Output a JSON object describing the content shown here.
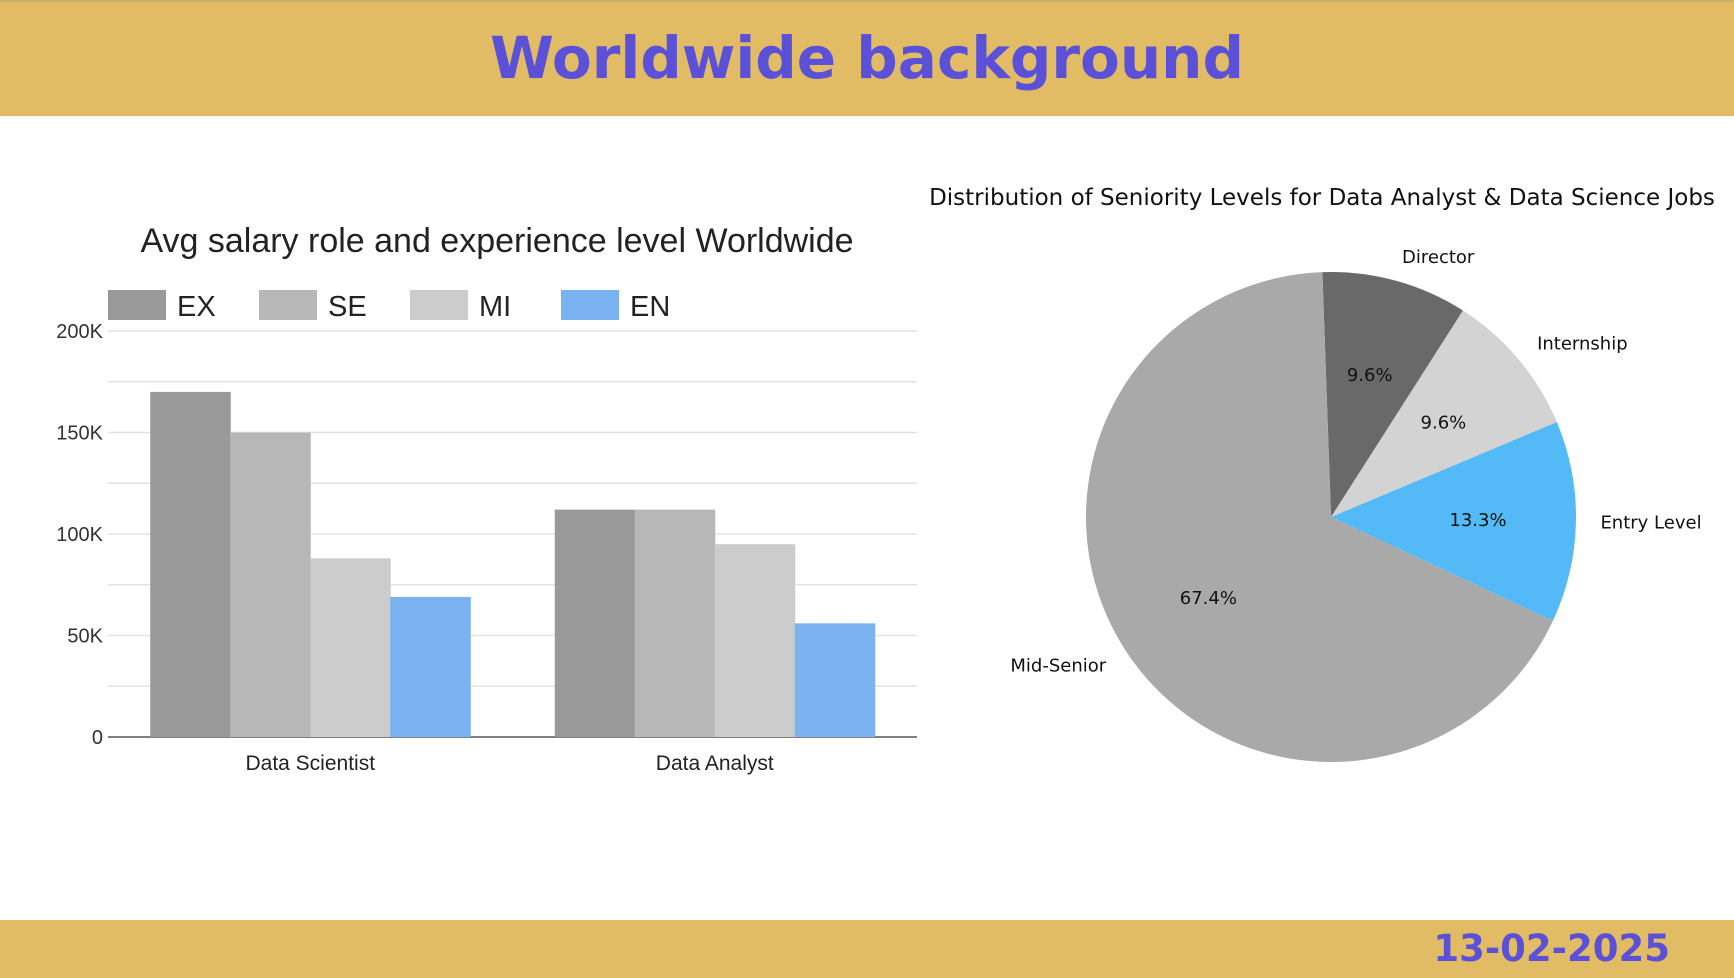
{
  "header": {
    "title": "Worldwide background"
  },
  "footer": {
    "date": "13-02-2025"
  },
  "chart_data": [
    {
      "type": "bar",
      "title": "Avg salary role and experience level Worldwide",
      "categories": [
        "Data Scientist",
        "Data Analyst"
      ],
      "series": [
        {
          "name": "EX",
          "color": "#999999",
          "values": [
            170000,
            112000
          ]
        },
        {
          "name": "SE",
          "color": "#b7b7b7",
          "values": [
            150000,
            112000
          ]
        },
        {
          "name": "MI",
          "color": "#cccccc",
          "values": [
            88000,
            95000
          ]
        },
        {
          "name": "EN",
          "color": "#7ab3ef",
          "values": [
            69000,
            56000
          ]
        }
      ],
      "ylim": [
        0,
        200000
      ],
      "yticks": [
        {
          "value": 0,
          "label": "0"
        },
        {
          "value": 50000,
          "label": "50K"
        },
        {
          "value": 100000,
          "label": "100K"
        },
        {
          "value": 150000,
          "label": "150K"
        },
        {
          "value": 200000,
          "label": "200K"
        }
      ],
      "legend": "top-left",
      "grid": true
    },
    {
      "type": "pie",
      "title": "Distribution of Seniority Levels for Data Analyst & Data Science Jobs",
      "slices": [
        {
          "label": "Entry Level",
          "value": 13.3,
          "pct": "13.3%",
          "color": "#53baf7"
        },
        {
          "label": "Internship",
          "value": 9.6,
          "pct": "9.6%",
          "color": "#d3d3d3"
        },
        {
          "label": "Director",
          "value": 9.6,
          "pct": "9.6%",
          "color": "#696969"
        },
        {
          "label": "Mid-Senior",
          "value": 67.4,
          "pct": "67.4%",
          "color": "#a9a9a9"
        }
      ],
      "order": "counterclockwise"
    }
  ]
}
